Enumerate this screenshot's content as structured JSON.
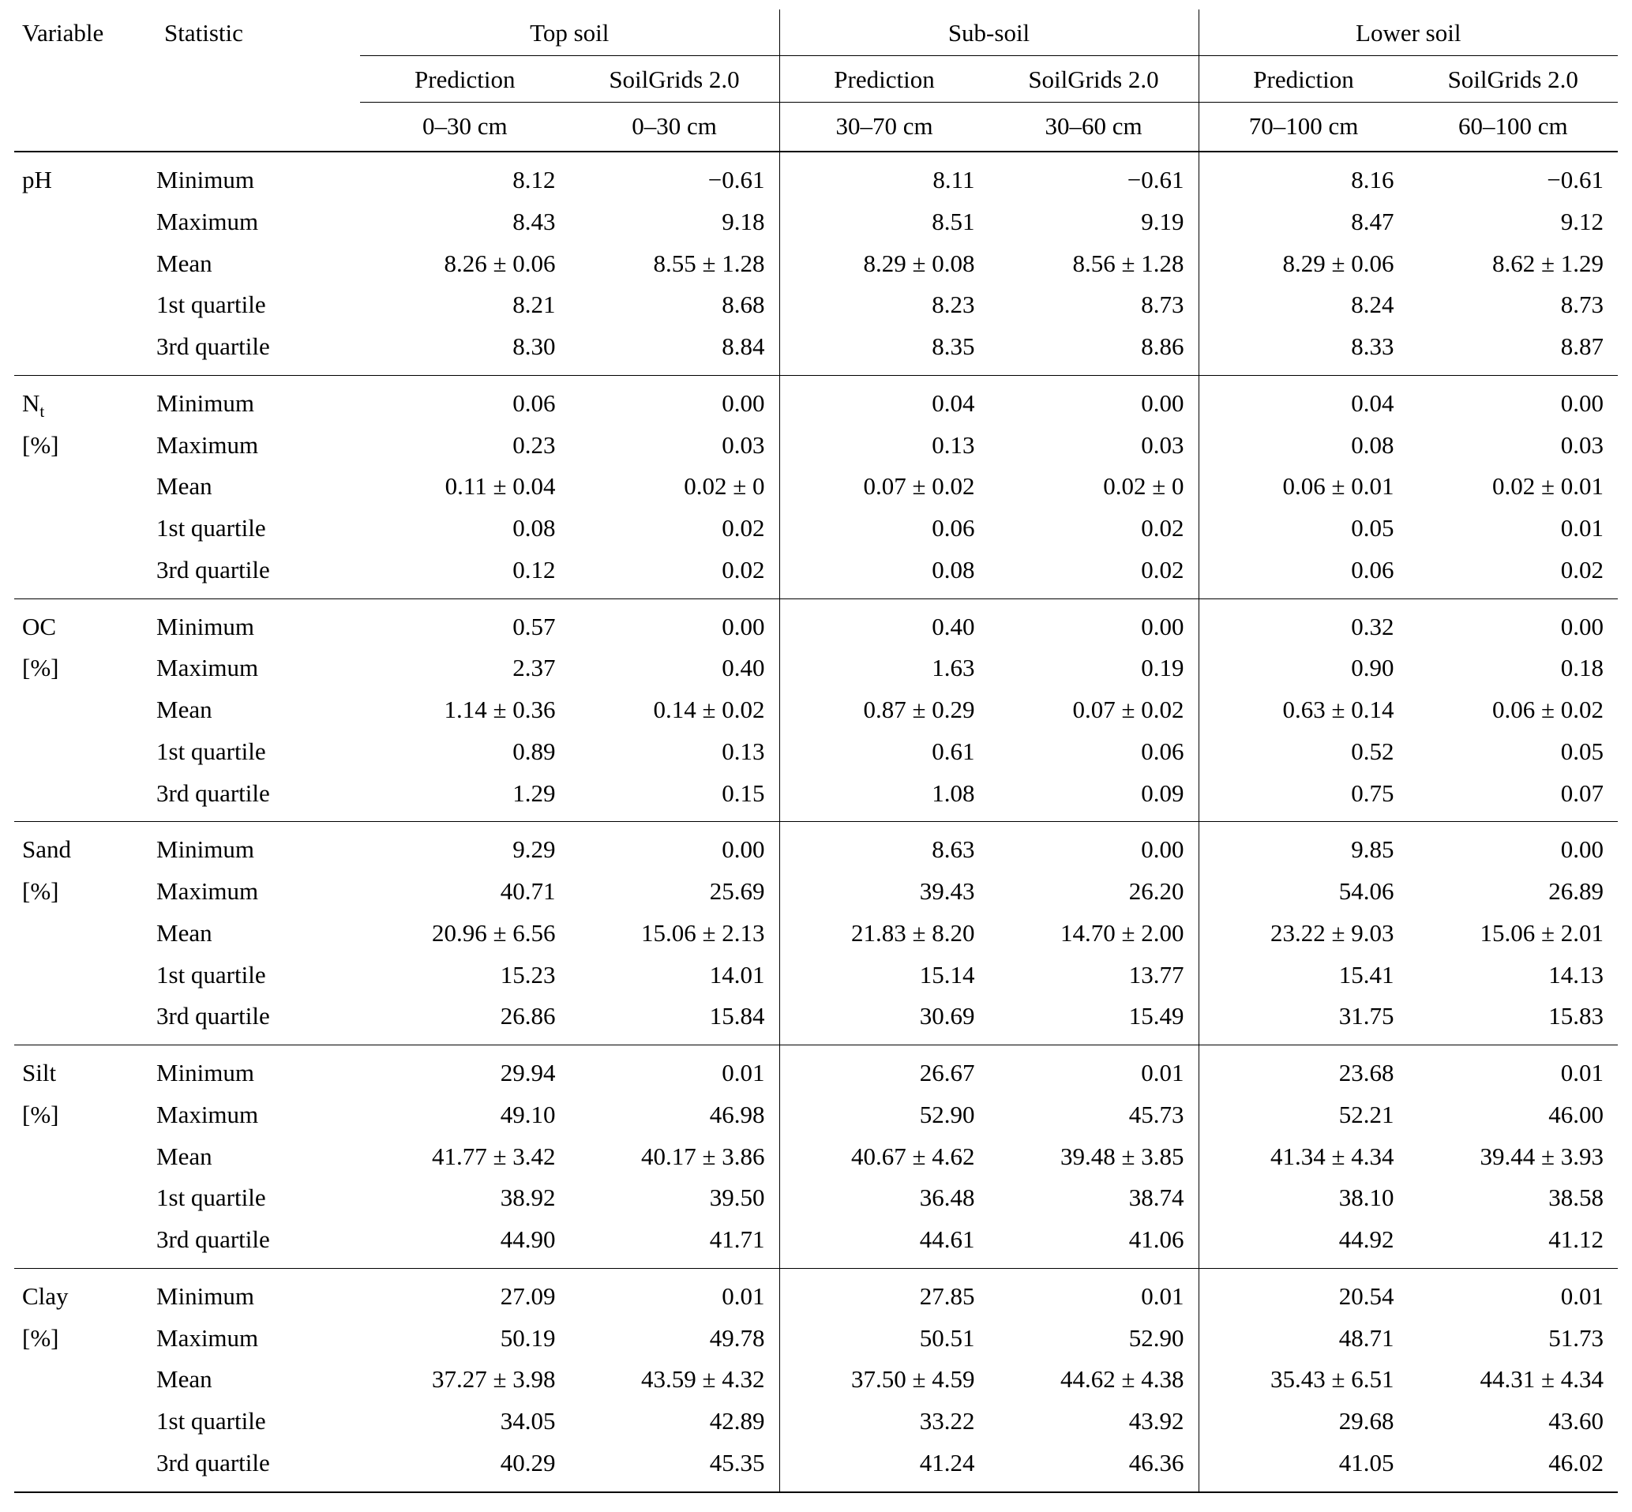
{
  "table": {
    "head": {
      "variable": "Variable",
      "statistic": "Statistic",
      "groups": [
        {
          "label": "Top soil",
          "sub": [
            {
              "source": "Prediction",
              "depth": "0–30 cm"
            },
            {
              "source": "SoilGrids 2.0",
              "depth": "0–30 cm"
            }
          ]
        },
        {
          "label": "Sub-soil",
          "sub": [
            {
              "source": "Prediction",
              "depth": "30–70 cm"
            },
            {
              "source": "SoilGrids 2.0",
              "depth": "30–60 cm"
            }
          ]
        },
        {
          "label": "Lower soil",
          "sub": [
            {
              "source": "Prediction",
              "depth": "70–100 cm"
            },
            {
              "source": "SoilGrids 2.0",
              "depth": "60–100 cm"
            }
          ]
        }
      ]
    },
    "blocks": [
      {
        "variable": "pH",
        "variable_sub": "",
        "unit": "",
        "rows": [
          {
            "statistic": "Minimum",
            "values": [
              "8.12",
              "−0.61",
              "8.11",
              "−0.61",
              "8.16",
              "−0.61"
            ]
          },
          {
            "statistic": "Maximum",
            "values": [
              "8.43",
              "9.18",
              "8.51",
              "9.19",
              "8.47",
              "9.12"
            ]
          },
          {
            "statistic": "Mean",
            "values": [
              "8.26 ± 0.06",
              "8.55 ± 1.28",
              "8.29 ± 0.08",
              "8.56 ± 1.28",
              "8.29 ± 0.06",
              "8.62 ± 1.29"
            ]
          },
          {
            "statistic": "1st quartile",
            "values": [
              "8.21",
              "8.68",
              "8.23",
              "8.73",
              "8.24",
              "8.73"
            ]
          },
          {
            "statistic": "3rd quartile",
            "values": [
              "8.30",
              "8.84",
              "8.35",
              "8.86",
              "8.33",
              "8.87"
            ]
          }
        ]
      },
      {
        "variable": "N",
        "variable_sub": "t",
        "unit": "[%]",
        "rows": [
          {
            "statistic": "Minimum",
            "values": [
              "0.06",
              "0.00",
              "0.04",
              "0.00",
              "0.04",
              "0.00"
            ]
          },
          {
            "statistic": "Maximum",
            "values": [
              "0.23",
              "0.03",
              "0.13",
              "0.03",
              "0.08",
              "0.03"
            ]
          },
          {
            "statistic": "Mean",
            "values": [
              "0.11 ± 0.04",
              "0.02 ± 0",
              "0.07 ± 0.02",
              "0.02 ± 0",
              "0.06 ± 0.01",
              "0.02 ± 0.01"
            ]
          },
          {
            "statistic": "1st quartile",
            "values": [
              "0.08",
              "0.02",
              "0.06",
              "0.02",
              "0.05",
              "0.01"
            ]
          },
          {
            "statistic": "3rd quartile",
            "values": [
              "0.12",
              "0.02",
              "0.08",
              "0.02",
              "0.06",
              "0.02"
            ]
          }
        ]
      },
      {
        "variable": "OC",
        "variable_sub": "",
        "unit": "[%]",
        "rows": [
          {
            "statistic": "Minimum",
            "values": [
              "0.57",
              "0.00",
              "0.40",
              "0.00",
              "0.32",
              "0.00"
            ]
          },
          {
            "statistic": "Maximum",
            "values": [
              "2.37",
              "0.40",
              "1.63",
              "0.19",
              "0.90",
              "0.18"
            ]
          },
          {
            "statistic": "Mean",
            "values": [
              "1.14 ± 0.36",
              "0.14 ± 0.02",
              "0.87 ± 0.29",
              "0.07 ± 0.02",
              "0.63 ± 0.14",
              "0.06 ± 0.02"
            ]
          },
          {
            "statistic": "1st quartile",
            "values": [
              "0.89",
              "0.13",
              "0.61",
              "0.06",
              "0.52",
              "0.05"
            ]
          },
          {
            "statistic": "3rd quartile",
            "values": [
              "1.29",
              "0.15",
              "1.08",
              "0.09",
              "0.75",
              "0.07"
            ]
          }
        ]
      },
      {
        "variable": "Sand",
        "variable_sub": "",
        "unit": "[%]",
        "rows": [
          {
            "statistic": "Minimum",
            "values": [
              "9.29",
              "0.00",
              "8.63",
              "0.00",
              "9.85",
              "0.00"
            ]
          },
          {
            "statistic": "Maximum",
            "values": [
              "40.71",
              "25.69",
              "39.43",
              "26.20",
              "54.06",
              "26.89"
            ]
          },
          {
            "statistic": "Mean",
            "values": [
              "20.96 ± 6.56",
              "15.06 ± 2.13",
              "21.83 ± 8.20",
              "14.70 ± 2.00",
              "23.22 ± 9.03",
              "15.06 ± 2.01"
            ]
          },
          {
            "statistic": "1st quartile",
            "values": [
              "15.23",
              "14.01",
              "15.14",
              "13.77",
              "15.41",
              "14.13"
            ]
          },
          {
            "statistic": "3rd quartile",
            "values": [
              "26.86",
              "15.84",
              "30.69",
              "15.49",
              "31.75",
              "15.83"
            ]
          }
        ]
      },
      {
        "variable": "Silt",
        "variable_sub": "",
        "unit": "[%]",
        "rows": [
          {
            "statistic": "Minimum",
            "values": [
              "29.94",
              "0.01",
              "26.67",
              "0.01",
              "23.68",
              "0.01"
            ]
          },
          {
            "statistic": "Maximum",
            "values": [
              "49.10",
              "46.98",
              "52.90",
              "45.73",
              "52.21",
              "46.00"
            ]
          },
          {
            "statistic": "Mean",
            "values": [
              "41.77 ± 3.42",
              "40.17 ± 3.86",
              "40.67 ± 4.62",
              "39.48 ± 3.85",
              "41.34 ± 4.34",
              "39.44 ± 3.93"
            ]
          },
          {
            "statistic": "1st quartile",
            "values": [
              "38.92",
              "39.50",
              "36.48",
              "38.74",
              "38.10",
              "38.58"
            ]
          },
          {
            "statistic": "3rd quartile",
            "values": [
              "44.90",
              "41.71",
              "44.61",
              "41.06",
              "44.92",
              "41.12"
            ]
          }
        ]
      },
      {
        "variable": "Clay",
        "variable_sub": "",
        "unit": "[%]",
        "rows": [
          {
            "statistic": "Minimum",
            "values": [
              "27.09",
              "0.01",
              "27.85",
              "0.01",
              "20.54",
              "0.01"
            ]
          },
          {
            "statistic": "Maximum",
            "values": [
              "50.19",
              "49.78",
              "50.51",
              "52.90",
              "48.71",
              "51.73"
            ]
          },
          {
            "statistic": "Mean",
            "values": [
              "37.27 ± 3.98",
              "43.59 ± 4.32",
              "37.50 ± 4.59",
              "44.62 ± 4.38",
              "35.43 ± 6.51",
              "44.31 ± 4.34"
            ]
          },
          {
            "statistic": "1st quartile",
            "values": [
              "34.05",
              "42.89",
              "33.22",
              "43.92",
              "29.68",
              "43.60"
            ]
          },
          {
            "statistic": "3rd quartile",
            "values": [
              "40.29",
              "45.35",
              "41.24",
              "46.36",
              "41.05",
              "46.02"
            ]
          }
        ]
      }
    ]
  }
}
